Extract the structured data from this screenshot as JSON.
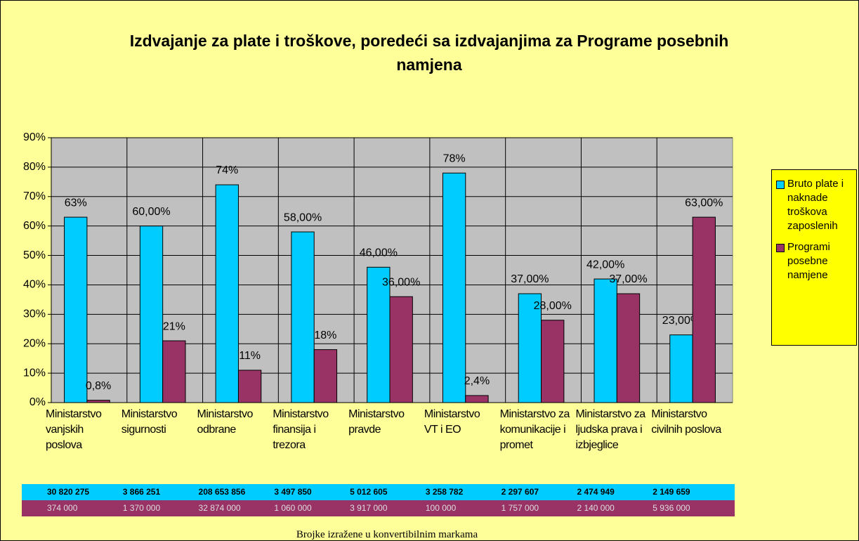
{
  "chart_data": {
    "type": "bar",
    "title": "Izdvajanje za plate i troškove, poredeći sa izdvajanjima za Programe posebnih namjena",
    "categories": [
      "Ministarstvo vanjskih poslova",
      "Ministarstvo sigurnosti",
      "Ministarstvo odbrane",
      "Ministarstvo finansija i trezora",
      "Ministarstvo pravde",
      "Ministarstvo VT i EO",
      "Ministarstvo za komunikacije i promet",
      "Ministarstvo za ljudska prava i izbjeglice",
      "Ministarstvo civilnih poslova"
    ],
    "series": [
      {
        "name": "Bruto plate i naknade troškova zaposlenih",
        "color": "#00ccff",
        "values": [
          63,
          60,
          74,
          58,
          46,
          78,
          37,
          42,
          23
        ],
        "value_labels": [
          "63%",
          "60,00%",
          "74%",
          "58,00%",
          "46,00%",
          "78%",
          "37,00%",
          "42,00%",
          "23,00%"
        ]
      },
      {
        "name": "Programi posebne namjene",
        "color": "#993366",
        "values": [
          0.8,
          21,
          11,
          18,
          36,
          2.4,
          28,
          37,
          63
        ],
        "value_labels": [
          "0,8%",
          "21%",
          "11%",
          "18%",
          "36,00%",
          "2,4%",
          "28,00%",
          "37,00%",
          "63,00%"
        ]
      }
    ],
    "ylim": [
      0,
      90
    ],
    "yticks": [
      {
        "value": 0,
        "label": "0%"
      },
      {
        "value": 10,
        "label": "10%"
      },
      {
        "value": 20,
        "label": "20%"
      },
      {
        "value": 30,
        "label": "30%"
      },
      {
        "value": 40,
        "label": "40%"
      },
      {
        "value": 50,
        "label": "50%"
      },
      {
        "value": 60,
        "label": "60%"
      },
      {
        "value": 70,
        "label": "70%"
      },
      {
        "value": 80,
        "label": "80%"
      },
      {
        "value": 90,
        "label": "90%"
      }
    ],
    "grid": true,
    "legend": "right"
  },
  "data_table": {
    "rows": [
      [
        "30 820 275",
        "3 866 251",
        "208 653 856",
        "3 497 850",
        "5 012 605",
        "3 258 782",
        "2 297 607",
        "2 474 949",
        "2 149 659"
      ],
      [
        "374 000",
        "1 370 000",
        "32 874 000",
        "1 060 000",
        "3 917 000",
        "100 000",
        "1 757 000",
        "2 140 000",
        "5 936 000"
      ]
    ]
  },
  "footnote": "Brojke izražene u konvertibilnim markama"
}
